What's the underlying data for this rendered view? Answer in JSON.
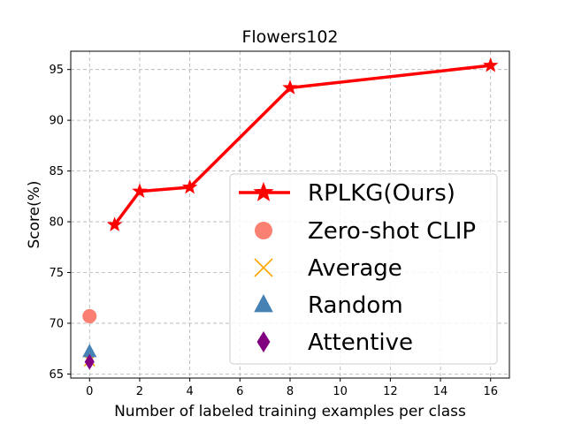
{
  "chart_data": {
    "type": "line",
    "title": "Flowers102",
    "xlabel": "Number of labeled training examples per class",
    "ylabel": "Score(%)",
    "xlim": [
      -0.75,
      16.75
    ],
    "ylim": [
      64.6,
      96.8
    ],
    "xticks": [
      0,
      2,
      4,
      6,
      8,
      10,
      12,
      14,
      16
    ],
    "yticks": [
      65,
      70,
      75,
      80,
      85,
      90,
      95
    ],
    "grid": true,
    "legend_position": "lower-right",
    "series": [
      {
        "name": "RPLKG(Ours)",
        "marker": "star",
        "color": "#ff0000",
        "line": true,
        "x": [
          1,
          2,
          4,
          8,
          16
        ],
        "y": [
          79.7,
          83.0,
          83.4,
          93.2,
          95.4
        ]
      },
      {
        "name": "Zero-shot CLIP",
        "marker": "circle",
        "color": "#fa8072",
        "line": false,
        "x": [
          0
        ],
        "y": [
          70.7
        ]
      },
      {
        "name": "Average",
        "marker": "x",
        "color": "#ffa500",
        "line": false,
        "x": [
          0
        ],
        "y": [
          66.3
        ]
      },
      {
        "name": "Random",
        "marker": "triangle",
        "color": "#4682b4",
        "line": false,
        "x": [
          0
        ],
        "y": [
          67.2
        ]
      },
      {
        "name": "Attentive",
        "marker": "diamond",
        "color": "#800080",
        "line": false,
        "x": [
          0
        ],
        "y": [
          66.2
        ]
      }
    ]
  }
}
